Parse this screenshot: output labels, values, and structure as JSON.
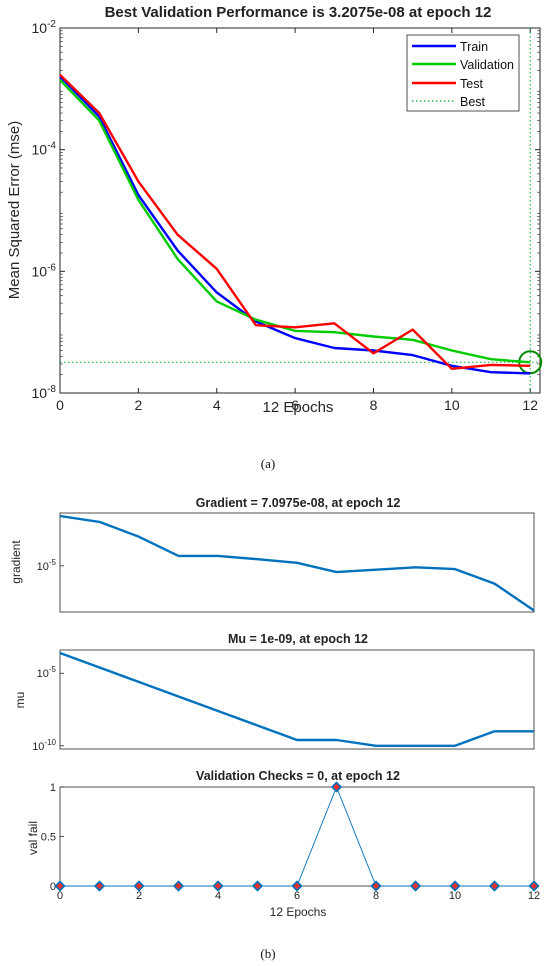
{
  "chart_data": [
    {
      "id": "a",
      "type": "line",
      "title": "Best Validation Performance is 3.2075e-08 at epoch 12",
      "xlabel": "12 Epochs",
      "ylabel": "Mean Squared Error  (mse)",
      "x_ticks": [
        "0",
        "2",
        "4",
        "6",
        "8",
        "10",
        "12"
      ],
      "y_ticks": [
        {
          "base": "10",
          "exp": "-2"
        },
        {
          "base": "10",
          "exp": "-4"
        },
        {
          "base": "10",
          "exp": "-6"
        },
        {
          "base": "10",
          "exp": "-8"
        }
      ],
      "xlim": [
        0,
        12.25
      ],
      "ylim": [
        1e-08,
        0.01
      ],
      "yscale": "log",
      "grid": false,
      "legend_position": "top-right",
      "x": [
        0,
        1,
        2,
        3,
        4,
        5,
        6,
        7,
        8,
        9,
        10,
        11,
        12
      ],
      "series": [
        {
          "name": "Train",
          "color": "#0000ff",
          "values": [
            0.0016,
            0.00035,
            1.8e-05,
            2.2e-06,
            4.5e-07,
            1.5e-07,
            8e-08,
            5.5e-08,
            5e-08,
            4.2e-08,
            2.8e-08,
            2.2e-08,
            2.1e-08
          ]
        },
        {
          "name": "Validation",
          "color": "#00cc00",
          "values": [
            0.0014,
            0.0003,
            1.5e-05,
            1.6e-06,
            3.2e-07,
            1.6e-07,
            1.05e-07,
            1e-07,
            8.5e-08,
            7.5e-08,
            5e-08,
            3.6e-08,
            3.2e-08
          ]
        },
        {
          "name": "Test",
          "color": "#ff0000",
          "values": [
            0.0017,
            0.0004,
            3e-05,
            4e-06,
            1.1e-06,
            1.3e-07,
            1.2e-07,
            1.4e-07,
            4.5e-08,
            1.1e-07,
            2.5e-08,
            2.9e-08,
            2.8e-08
          ]
        }
      ],
      "best": {
        "name": "Best",
        "color": "#00cc00",
        "epoch": 12,
        "value": 3.2075e-08
      },
      "caption": "(a)"
    },
    {
      "id": "gradient",
      "type": "line",
      "title": "Gradient = 7.0975e-08, at epoch 12",
      "ylabel": "gradient",
      "y_ticks": [
        {
          "base": "10",
          "exp": "-5"
        }
      ],
      "xlim": [
        0,
        12
      ],
      "yscale": "log",
      "ylim": [
        6e-08,
        0.0035
      ],
      "color": "#0072bd",
      "x": [
        0,
        1,
        2,
        3,
        4,
        5,
        6,
        7,
        8,
        9,
        10,
        11,
        12
      ],
      "values": [
        0.0025,
        0.0013,
        0.00025,
        3e-05,
        3e-05,
        2.1e-05,
        1.4e-05,
        5e-06,
        6.5e-06,
        8.5e-06,
        7e-06,
        1.4e-06,
        7.0975e-08
      ]
    },
    {
      "id": "mu",
      "type": "line",
      "title": "Mu = 1e-09, at epoch 12",
      "ylabel": "mu",
      "y_ticks": [
        {
          "base": "10",
          "exp": "-5",
          "value": 1e-05
        },
        {
          "base": "10",
          "exp": "-10",
          "value": 1e-10
        }
      ],
      "xlim": [
        0,
        12
      ],
      "yscale": "log",
      "ylim": [
        6e-11,
        0.0004
      ],
      "color": "#0072bd",
      "x": [
        0,
        1,
        2,
        3,
        4,
        5,
        6,
        7,
        8,
        9,
        10,
        11,
        12
      ],
      "values": [
        0.00025,
        2.5e-05,
        2.5e-06,
        2.5e-07,
        2.5e-08,
        2.5e-09,
        2.5e-10,
        2.5e-10,
        1e-10,
        1e-10,
        1e-10,
        1e-09,
        1e-09
      ]
    },
    {
      "id": "valfail",
      "type": "scatter",
      "title": "Validation Checks = 0, at epoch 12",
      "xlabel": "12 Epochs",
      "ylabel": "val fail",
      "x_ticks": [
        "0",
        "2",
        "4",
        "6",
        "8",
        "10",
        "12"
      ],
      "y_ticks": [
        "0",
        "0.5",
        "1"
      ],
      "xlim": [
        0,
        12
      ],
      "ylim": [
        0,
        1
      ],
      "line_color": "#0072bd",
      "marker_color": "#e8302a",
      "x": [
        0,
        1,
        2,
        3,
        4,
        5,
        6,
        7,
        8,
        9,
        10,
        11,
        12
      ],
      "values": [
        0,
        0,
        0,
        0,
        0,
        0,
        0,
        1,
        0,
        0,
        0,
        0,
        0
      ],
      "caption": "(b)"
    }
  ]
}
